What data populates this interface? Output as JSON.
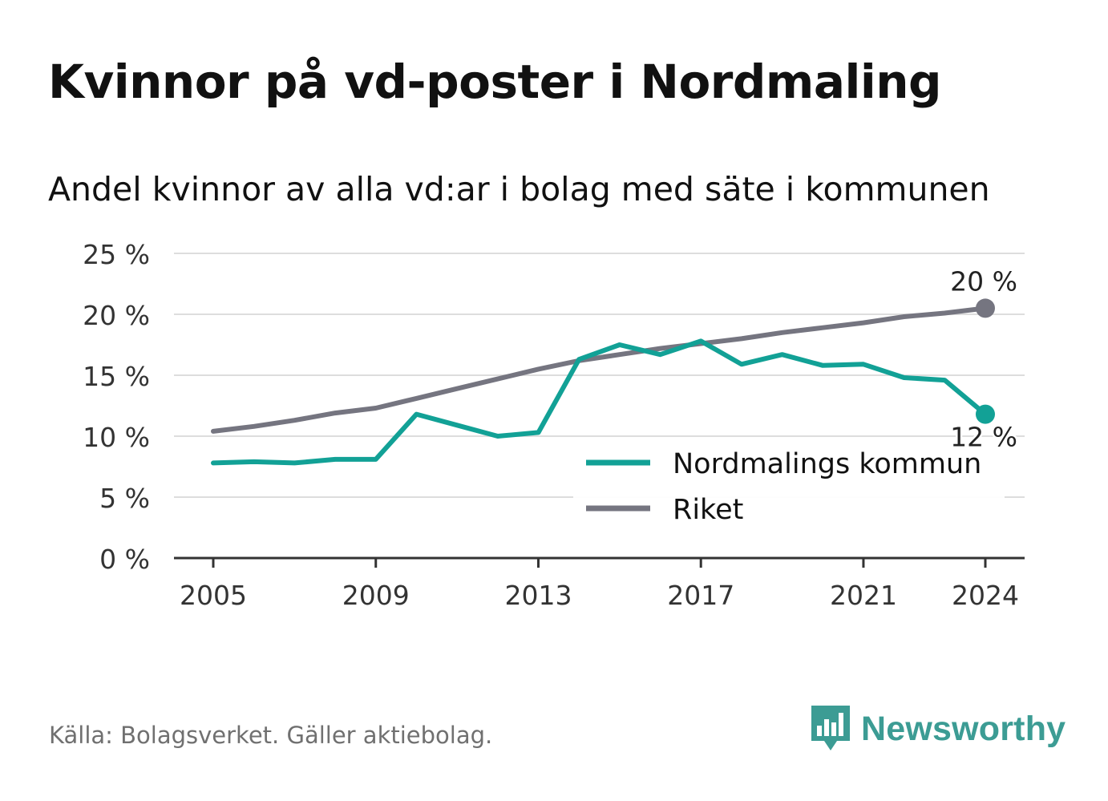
{
  "header": {
    "title": "Kvinnor på vd-poster i Nordmaling",
    "subtitle": "Andel kvinnor av alla vd:ar i bolag med säte i kommunen"
  },
  "footer": {
    "source": "Källa: Bolagsverket. Gäller aktiebolag.",
    "brand": "Newsworthy",
    "brand_icon": "bar-chart-speech-bubble-icon",
    "brand_color": "#3c9c94"
  },
  "chart_data": {
    "type": "line",
    "title": "Kvinnor på vd-poster i Nordmaling",
    "subtitle": "Andel kvinnor av alla vd:ar i bolag med säte i kommunen",
    "xlabel": "",
    "ylabel": "",
    "x": [
      2005,
      2006,
      2007,
      2008,
      2009,
      2010,
      2011,
      2012,
      2013,
      2014,
      2015,
      2016,
      2017,
      2018,
      2019,
      2020,
      2021,
      2022,
      2023,
      2024
    ],
    "xticks": [
      2005,
      2009,
      2013,
      2017,
      2021,
      2024
    ],
    "xlim": [
      2004,
      2025
    ],
    "ylim": [
      0,
      25
    ],
    "yticks": [
      0,
      5,
      10,
      15,
      20,
      25
    ],
    "ytick_labels": [
      "0 %",
      "5 %",
      "10 %",
      "15 %",
      "20 %",
      "25 %"
    ],
    "grid": true,
    "legend_position": "bottom-right",
    "series": [
      {
        "name": "Nordmalings kommun",
        "color": "#12a196",
        "values": [
          7.8,
          7.9,
          7.8,
          8.1,
          8.1,
          11.8,
          10.9,
          10.0,
          10.3,
          16.3,
          17.5,
          16.7,
          17.8,
          15.9,
          16.7,
          15.8,
          15.9,
          14.8,
          14.6,
          11.8
        ],
        "end_label": "12 %"
      },
      {
        "name": "Riket",
        "color": "#757580",
        "values": [
          10.4,
          10.8,
          11.3,
          11.9,
          12.3,
          13.1,
          13.9,
          14.7,
          15.5,
          16.2,
          16.7,
          17.2,
          17.6,
          18.0,
          18.5,
          18.9,
          19.3,
          19.8,
          20.1,
          20.5
        ],
        "end_label": "20 %"
      }
    ]
  }
}
